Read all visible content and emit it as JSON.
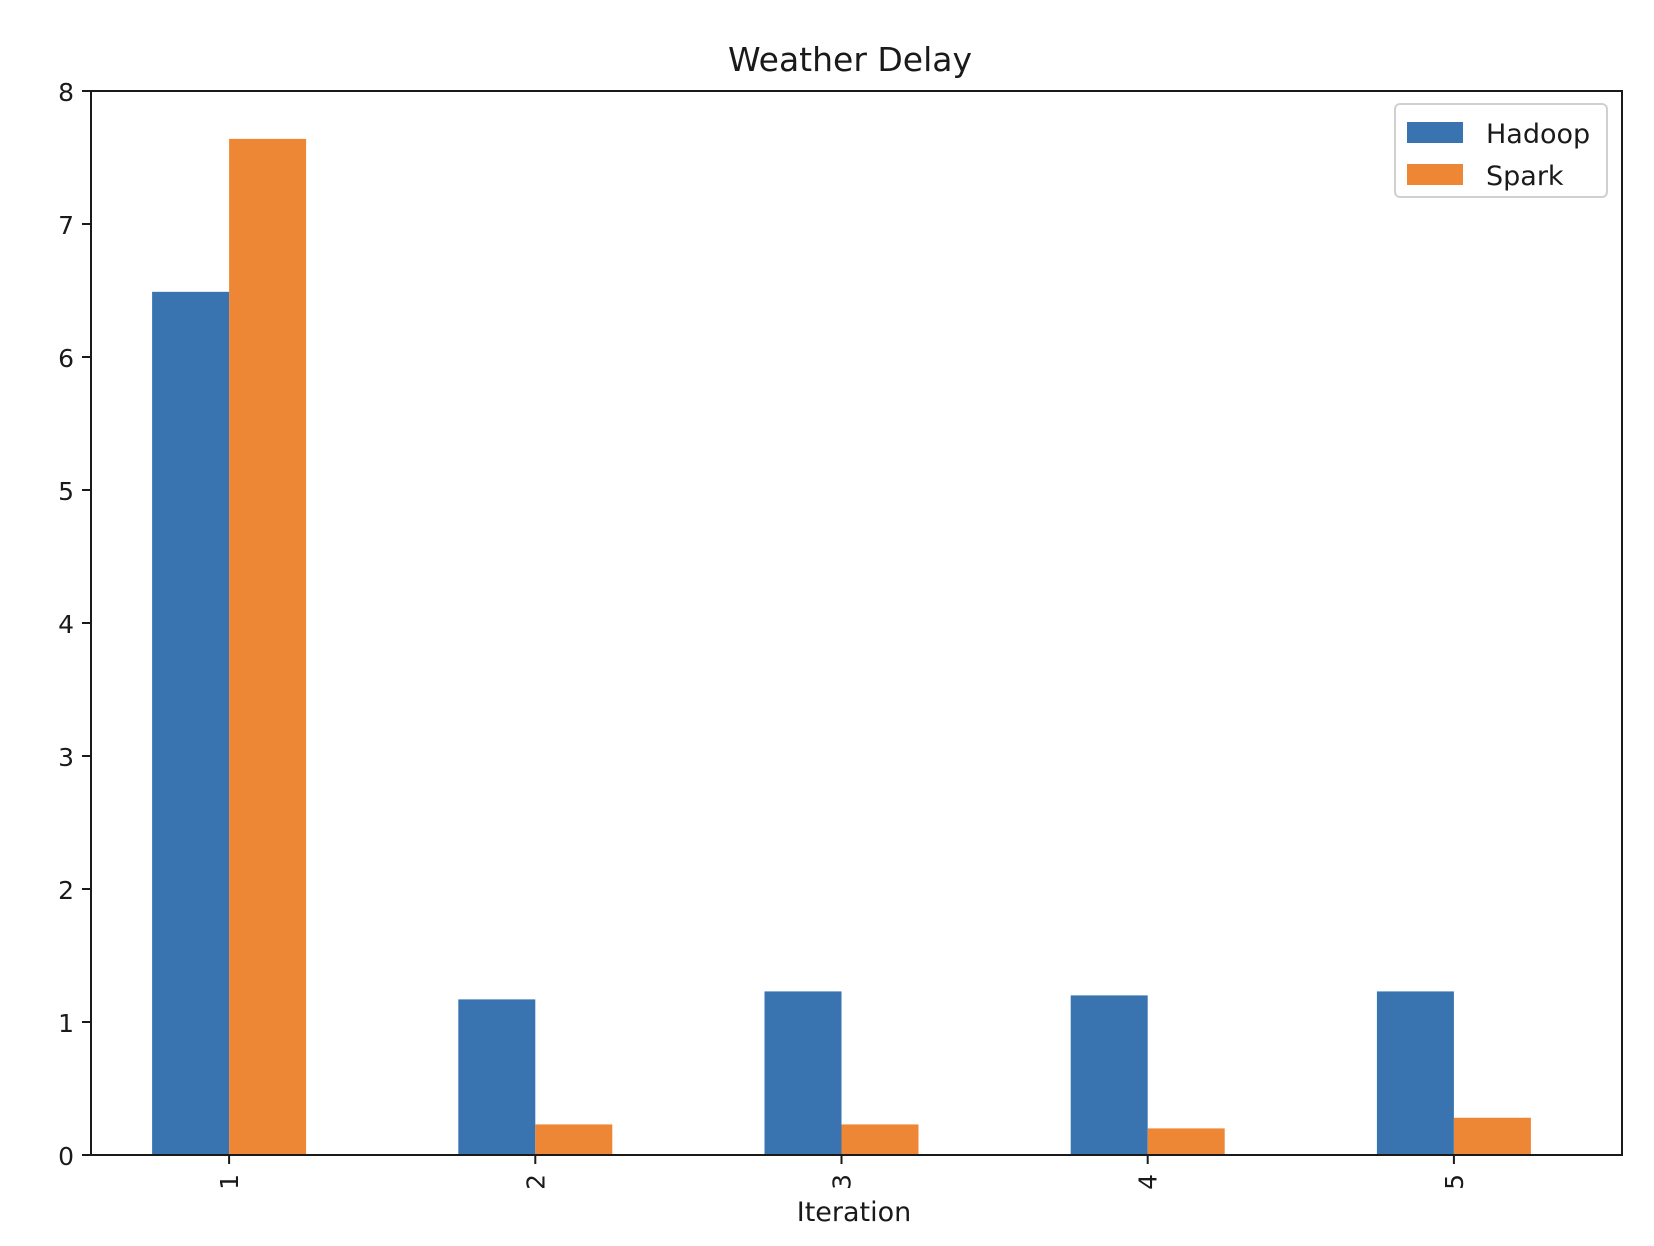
{
  "chart_data": {
    "type": "bar",
    "title": "Weather Delay",
    "xlabel": "Iteration",
    "ylabel": "",
    "categories": [
      "1",
      "2",
      "3",
      "4",
      "5"
    ],
    "series": [
      {
        "name": "Hadoop",
        "color": "#3a74b0",
        "values": [
          6.49,
          1.17,
          1.23,
          1.2,
          1.23
        ]
      },
      {
        "name": "Spark",
        "color": "#ee8735",
        "values": [
          7.64,
          0.23,
          0.23,
          0.2,
          0.28
        ]
      }
    ],
    "ylim": [
      0,
      8
    ],
    "yticks": [
      "0",
      "1",
      "2",
      "3",
      "4",
      "5",
      "6",
      "7",
      "8"
    ],
    "xtick_rotation": "vertical",
    "grid": false,
    "legend": {
      "position": "upper right"
    }
  }
}
